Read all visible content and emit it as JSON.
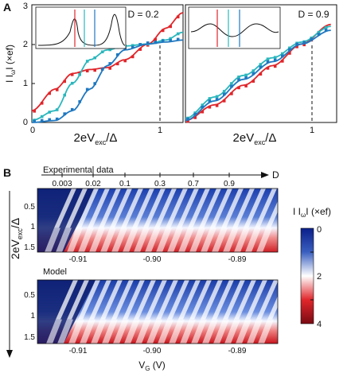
{
  "panel_labels": {
    "a": "A",
    "b": "B"
  },
  "panel_a": {
    "ylabel_pre": "I I",
    "ylabel_sub": "ω",
    "ylabel_post": "I (×ef)",
    "xlabel_pre": "2eV",
    "xlabel_sub": "exc",
    "xlabel_post": "/Δ",
    "y_ticks": [
      "0",
      "1",
      "2",
      "3"
    ],
    "x_ticks_left": [
      "0",
      "1"
    ],
    "x_ticks_right": [
      "1"
    ],
    "left_label": "D = 0.2",
    "right_label": "D = 0.9"
  },
  "panel_b": {
    "exp_title": "Experimental data",
    "model_title": "Model",
    "d_label": "D",
    "d_ticks": [
      "0.003",
      "0.02",
      "0.1",
      "0.3",
      "0.7",
      "0.9"
    ],
    "y_ticks": [
      "0.5",
      "1",
      "1.5"
    ],
    "x_ticks": [
      "-0.91",
      "-0.90",
      "-0.89"
    ],
    "ylabel_pre": "2eV",
    "ylabel_sub": "exc",
    "ylabel_post": "/Δ",
    "xlabel_pre": "V",
    "xlabel_sub": "G",
    "xlabel_post": " (V)",
    "cbar_title_pre": "I I",
    "cbar_title_sub": "ω",
    "cbar_title_post": "I (×ef)",
    "cbar_ticks": [
      "0",
      "2",
      "4"
    ]
  },
  "colors": {
    "red": "#e0262b",
    "teal": "#2ab7bd",
    "blue": "#1f78c0",
    "navy": "#0a1f8a",
    "dark_red": "#7a0a12"
  },
  "chart_data": [
    {
      "type": "line",
      "title": "",
      "subtitle": "D = 0.2",
      "xlabel": "2eVexc/Δ",
      "ylabel": "|I_ω| (×ef)",
      "xlim": [
        0,
        1.3
      ],
      "ylim": [
        0,
        3
      ],
      "series": [
        {
          "color": "red",
          "x": [
            0,
            0.2,
            0.35,
            0.5,
            0.65,
            0.8,
            1.0,
            1.15,
            1.3
          ],
          "values": [
            0.3,
            0.85,
            1.25,
            1.35,
            1.4,
            1.6,
            2.0,
            2.4,
            2.8
          ]
        },
        {
          "color": "teal",
          "x": [
            0,
            0.2,
            0.35,
            0.5,
            0.65,
            0.8,
            1.0,
            1.15,
            1.3
          ],
          "values": [
            0.05,
            0.3,
            1.0,
            1.6,
            1.85,
            1.95,
            2.0,
            2.1,
            2.3
          ]
        },
        {
          "color": "blue",
          "x": [
            0,
            0.2,
            0.35,
            0.5,
            0.65,
            0.8,
            1.0,
            1.15,
            1.3
          ],
          "values": [
            0.0,
            0.05,
            0.3,
            0.85,
            1.45,
            1.85,
            2.0,
            2.05,
            2.1
          ]
        }
      ],
      "annotation": {
        "vertical_dashed_x": 1.0
      }
    },
    {
      "type": "line",
      "title": "",
      "subtitle": "D = 0.9",
      "xlim": [
        0,
        1.3
      ],
      "ylim": [
        0,
        3
      ],
      "series": [
        {
          "color": "red",
          "x": [
            0,
            0.25,
            0.5,
            0.75,
            1.0,
            1.25
          ],
          "values": [
            0.05,
            0.45,
            0.95,
            1.45,
            2.0,
            2.5
          ]
        },
        {
          "color": "teal",
          "x": [
            0,
            0.25,
            0.5,
            0.75,
            1.0,
            1.25
          ],
          "values": [
            0.1,
            0.65,
            1.2,
            1.65,
            2.05,
            2.45
          ]
        },
        {
          "color": "blue",
          "x": [
            0,
            0.25,
            0.5,
            0.75,
            1.0,
            1.25
          ],
          "values": [
            0.05,
            0.55,
            1.1,
            1.55,
            2.0,
            2.35
          ]
        }
      ],
      "annotation": {
        "vertical_dashed_x": 1.0
      }
    },
    {
      "type": "heatmap",
      "title": "Experimental data",
      "xlabel": "VG (V)",
      "ylabel": "2eVexc/Δ",
      "x_ticks": [
        -0.91,
        -0.9,
        -0.89
      ],
      "y_ticks": [
        0.5,
        1,
        1.5
      ],
      "d_ticks": [
        0.003,
        0.02,
        0.1,
        0.3,
        0.7,
        0.9
      ],
      "colorbar": {
        "range": [
          0,
          4
        ],
        "ticks": [
          0,
          2,
          4
        ]
      }
    },
    {
      "type": "heatmap",
      "title": "Model",
      "xlabel": "VG (V)",
      "ylabel": "2eVexc/Δ",
      "x_ticks": [
        -0.91,
        -0.9,
        -0.89
      ],
      "y_ticks": [
        0.5,
        1,
        1.5
      ],
      "colorbar": {
        "range": [
          0,
          4
        ],
        "ticks": [
          0,
          2,
          4
        ]
      }
    }
  ]
}
